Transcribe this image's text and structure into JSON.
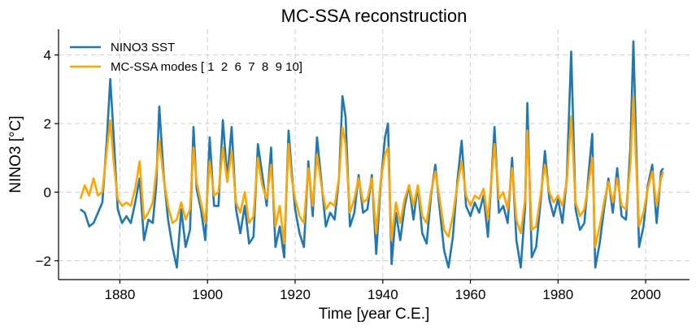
{
  "chart_data": {
    "type": "line",
    "title": "MC-SSA reconstruction",
    "xlabel": "Time [year C.E.]",
    "ylabel": "NINO3 [°C]",
    "xlim": [
      1866,
      2010
    ],
    "ylim": [
      -2.55,
      4.75
    ],
    "xticks": [
      1880,
      1900,
      1920,
      1940,
      1960,
      1980,
      2000
    ],
    "yticks": [
      -2,
      0,
      2,
      4
    ],
    "ytick_labels": [
      "−2",
      "0",
      "2",
      "4"
    ],
    "grid": true,
    "legend_position": "top-left",
    "colors": {
      "sst": "#1f77b4",
      "mcssa": "#ffa500"
    },
    "series": [
      {
        "name": "NINO3 SST",
        "x": [
          1871.0,
          1872.0,
          1873.0,
          1874.0,
          1875.0,
          1876.0,
          1877.0,
          1877.8,
          1878.5,
          1879.5,
          1880.5,
          1881.5,
          1882.5,
          1883.5,
          1884.5,
          1885.5,
          1886.5,
          1887.5,
          1888.3,
          1889.0,
          1890.0,
          1891.0,
          1892.0,
          1893.0,
          1894.0,
          1895.0,
          1896.0,
          1896.8,
          1897.5,
          1898.5,
          1899.5,
          1900.5,
          1901.5,
          1902.5,
          1903.5,
          1904.5,
          1905.5,
          1906.5,
          1907.5,
          1908.5,
          1909.5,
          1910.5,
          1911.5,
          1912.5,
          1913.5,
          1914.5,
          1915.5,
          1916.5,
          1917.5,
          1918.5,
          1919.2,
          1920.0,
          1921.0,
          1922.0,
          1923.0,
          1924.0,
          1925.0,
          1926.0,
          1927.0,
          1928.0,
          1929.0,
          1930.0,
          1930.8,
          1931.5,
          1932.5,
          1933.5,
          1934.5,
          1935.5,
          1936.5,
          1937.5,
          1938.5,
          1939.5,
          1940.5,
          1941.2,
          1942.0,
          1943.0,
          1944.0,
          1945.0,
          1946.0,
          1947.0,
          1948.0,
          1949.0,
          1950.0,
          1951.0,
          1952.0,
          1953.0,
          1954.0,
          1955.0,
          1956.0,
          1957.0,
          1958.0,
          1959.0,
          1960.0,
          1961.0,
          1962.0,
          1963.0,
          1964.0,
          1965.5,
          1966.5,
          1967.5,
          1968.5,
          1969.5,
          1970.5,
          1971.5,
          1972.5,
          1973.0,
          1974.0,
          1975.0,
          1976.0,
          1977.0,
          1978.0,
          1979.0,
          1980.0,
          1981.0,
          1982.0,
          1983.0,
          1984.0,
          1985.0,
          1986.0,
          1987.0,
          1987.8,
          1988.5,
          1989.5,
          1990.5,
          1991.5,
          1992.5,
          1993.5,
          1994.5,
          1995.5,
          1996.5,
          1997.2,
          1997.8,
          1998.5,
          1999.5,
          2000.5,
          2001.5,
          2002.5,
          2003.5,
          2004.0
        ],
        "y": [
          -0.5,
          -0.6,
          -1.0,
          -0.9,
          -0.6,
          -0.3,
          1.5,
          3.3,
          1.8,
          -0.5,
          -0.9,
          -0.7,
          -0.9,
          -0.3,
          0.4,
          -1.4,
          -0.8,
          -0.9,
          0.2,
          2.5,
          0.5,
          -0.8,
          -1.6,
          -2.2,
          -0.5,
          -1.6,
          -1.1,
          1.9,
          0.1,
          -0.5,
          -1.4,
          1.6,
          -0.4,
          -0.4,
          2.1,
          0.4,
          1.9,
          -0.5,
          -1.2,
          -0.4,
          -1.5,
          -1.3,
          1.4,
          0.5,
          -0.4,
          1.3,
          -1.6,
          -1.0,
          -1.9,
          1.8,
          0.6,
          -0.5,
          -1.2,
          -1.6,
          0.9,
          -0.7,
          1.6,
          0.3,
          -1.0,
          -0.6,
          -0.8,
          0.4,
          2.8,
          2.2,
          -1.0,
          -0.6,
          0.5,
          -0.6,
          -0.5,
          0.5,
          -1.8,
          0.2,
          1.6,
          2.0,
          -2.1,
          -0.6,
          -1.4,
          -0.4,
          0.2,
          -0.8,
          0.2,
          -1.2,
          -1.5,
          -0.1,
          0.8,
          -0.5,
          -1.7,
          -2.2,
          -1.3,
          0.3,
          1.5,
          -0.4,
          -0.7,
          -0.3,
          -0.6,
          -0.1,
          -1.3,
          1.9,
          -0.6,
          -0.4,
          -0.9,
          1.0,
          -1.4,
          -2.2,
          -0.4,
          2.6,
          -1.9,
          -1.6,
          -0.3,
          1.2,
          -0.2,
          -0.7,
          -0.2,
          -0.9,
          0.4,
          4.1,
          -0.5,
          -1.1,
          -0.9,
          0.6,
          1.7,
          -2.2,
          -1.5,
          -0.5,
          0.4,
          -0.6,
          0.7,
          -0.7,
          -0.8,
          1.3,
          4.4,
          1.5,
          -1.6,
          -1.0,
          0.2,
          0.8,
          -0.9,
          0.6,
          0.7
        ]
      },
      {
        "name": "MC-SSA modes [ 1  2  6  7  8  9 10]",
        "x": [
          1871.0,
          1872.0,
          1873.0,
          1874.0,
          1875.0,
          1876.0,
          1877.0,
          1877.8,
          1878.5,
          1879.5,
          1880.5,
          1881.5,
          1882.5,
          1883.5,
          1884.5,
          1885.5,
          1886.5,
          1887.5,
          1888.3,
          1889.0,
          1890.0,
          1891.0,
          1892.0,
          1893.0,
          1894.0,
          1895.0,
          1896.0,
          1896.8,
          1897.5,
          1898.5,
          1899.5,
          1900.5,
          1901.5,
          1902.5,
          1903.5,
          1904.5,
          1905.5,
          1906.5,
          1907.5,
          1908.5,
          1909.5,
          1910.5,
          1911.5,
          1912.5,
          1913.5,
          1914.5,
          1915.5,
          1916.5,
          1917.5,
          1918.5,
          1919.2,
          1920.0,
          1921.0,
          1922.0,
          1923.0,
          1924.0,
          1925.0,
          1926.0,
          1927.0,
          1928.0,
          1929.0,
          1930.0,
          1930.8,
          1931.5,
          1932.5,
          1933.5,
          1934.5,
          1935.5,
          1936.5,
          1937.5,
          1938.5,
          1939.5,
          1940.5,
          1941.2,
          1942.0,
          1943.0,
          1944.0,
          1945.0,
          1946.0,
          1947.0,
          1948.0,
          1949.0,
          1950.0,
          1951.0,
          1952.0,
          1953.0,
          1954.0,
          1955.0,
          1956.0,
          1957.0,
          1958.0,
          1959.0,
          1960.0,
          1961.0,
          1962.0,
          1963.0,
          1964.0,
          1965.5,
          1966.5,
          1967.5,
          1968.5,
          1969.5,
          1970.5,
          1971.5,
          1972.5,
          1973.0,
          1974.0,
          1975.0,
          1976.0,
          1977.0,
          1978.0,
          1979.0,
          1980.0,
          1981.0,
          1982.0,
          1983.0,
          1984.0,
          1985.0,
          1986.0,
          1987.0,
          1987.8,
          1988.5,
          1989.5,
          1990.5,
          1991.5,
          1992.5,
          1993.5,
          1994.5,
          1995.5,
          1996.5,
          1997.2,
          1997.8,
          1998.5,
          1999.5,
          2000.5,
          2001.5,
          2002.5,
          2003.5,
          2004.0
        ],
        "y": [
          -0.2,
          0.2,
          -0.1,
          0.4,
          -0.1,
          0.0,
          1.2,
          2.1,
          1.0,
          -0.2,
          -0.4,
          -0.3,
          -0.4,
          0.1,
          0.9,
          -0.8,
          -0.6,
          -0.3,
          0.6,
          1.5,
          0.4,
          -0.4,
          -0.9,
          -0.8,
          -0.3,
          -0.8,
          -0.5,
          1.3,
          0.3,
          -0.3,
          -0.9,
          0.9,
          -0.1,
          0.0,
          1.3,
          0.3,
          1.2,
          -0.3,
          -0.6,
          0.0,
          -0.9,
          -0.7,
          1.0,
          0.2,
          -0.2,
          0.8,
          -1.0,
          -0.4,
          -1.5,
          1.4,
          0.4,
          -0.2,
          -0.7,
          -0.9,
          0.7,
          -0.4,
          1.1,
          0.2,
          -0.5,
          -0.3,
          -0.4,
          0.4,
          1.9,
          1.4,
          -0.6,
          -0.2,
          0.4,
          -0.3,
          -0.2,
          0.4,
          -1.2,
          0.3,
          1.1,
          1.3,
          -1.4,
          -0.3,
          -0.9,
          -0.2,
          0.2,
          -0.4,
          0.2,
          -0.7,
          -0.9,
          0.0,
          0.6,
          -0.2,
          -1.1,
          -1.3,
          -0.7,
          0.2,
          0.9,
          -0.1,
          -0.4,
          -0.1,
          -0.2,
          0.1,
          -0.8,
          1.4,
          -0.2,
          0.0,
          -0.5,
          0.7,
          -0.8,
          -1.2,
          -0.2,
          1.8,
          -1.1,
          -1.0,
          -0.1,
          0.8,
          0.0,
          -0.3,
          -0.1,
          -0.4,
          0.3,
          2.2,
          -0.3,
          -0.7,
          -0.5,
          0.3,
          1.0,
          -1.6,
          -1.0,
          -0.3,
          0.3,
          -0.3,
          0.4,
          -0.4,
          -0.5,
          0.8,
          2.8,
          0.9,
          -1.0,
          -0.6,
          0.1,
          0.6,
          -0.4,
          0.4,
          0.6
        ]
      }
    ]
  }
}
